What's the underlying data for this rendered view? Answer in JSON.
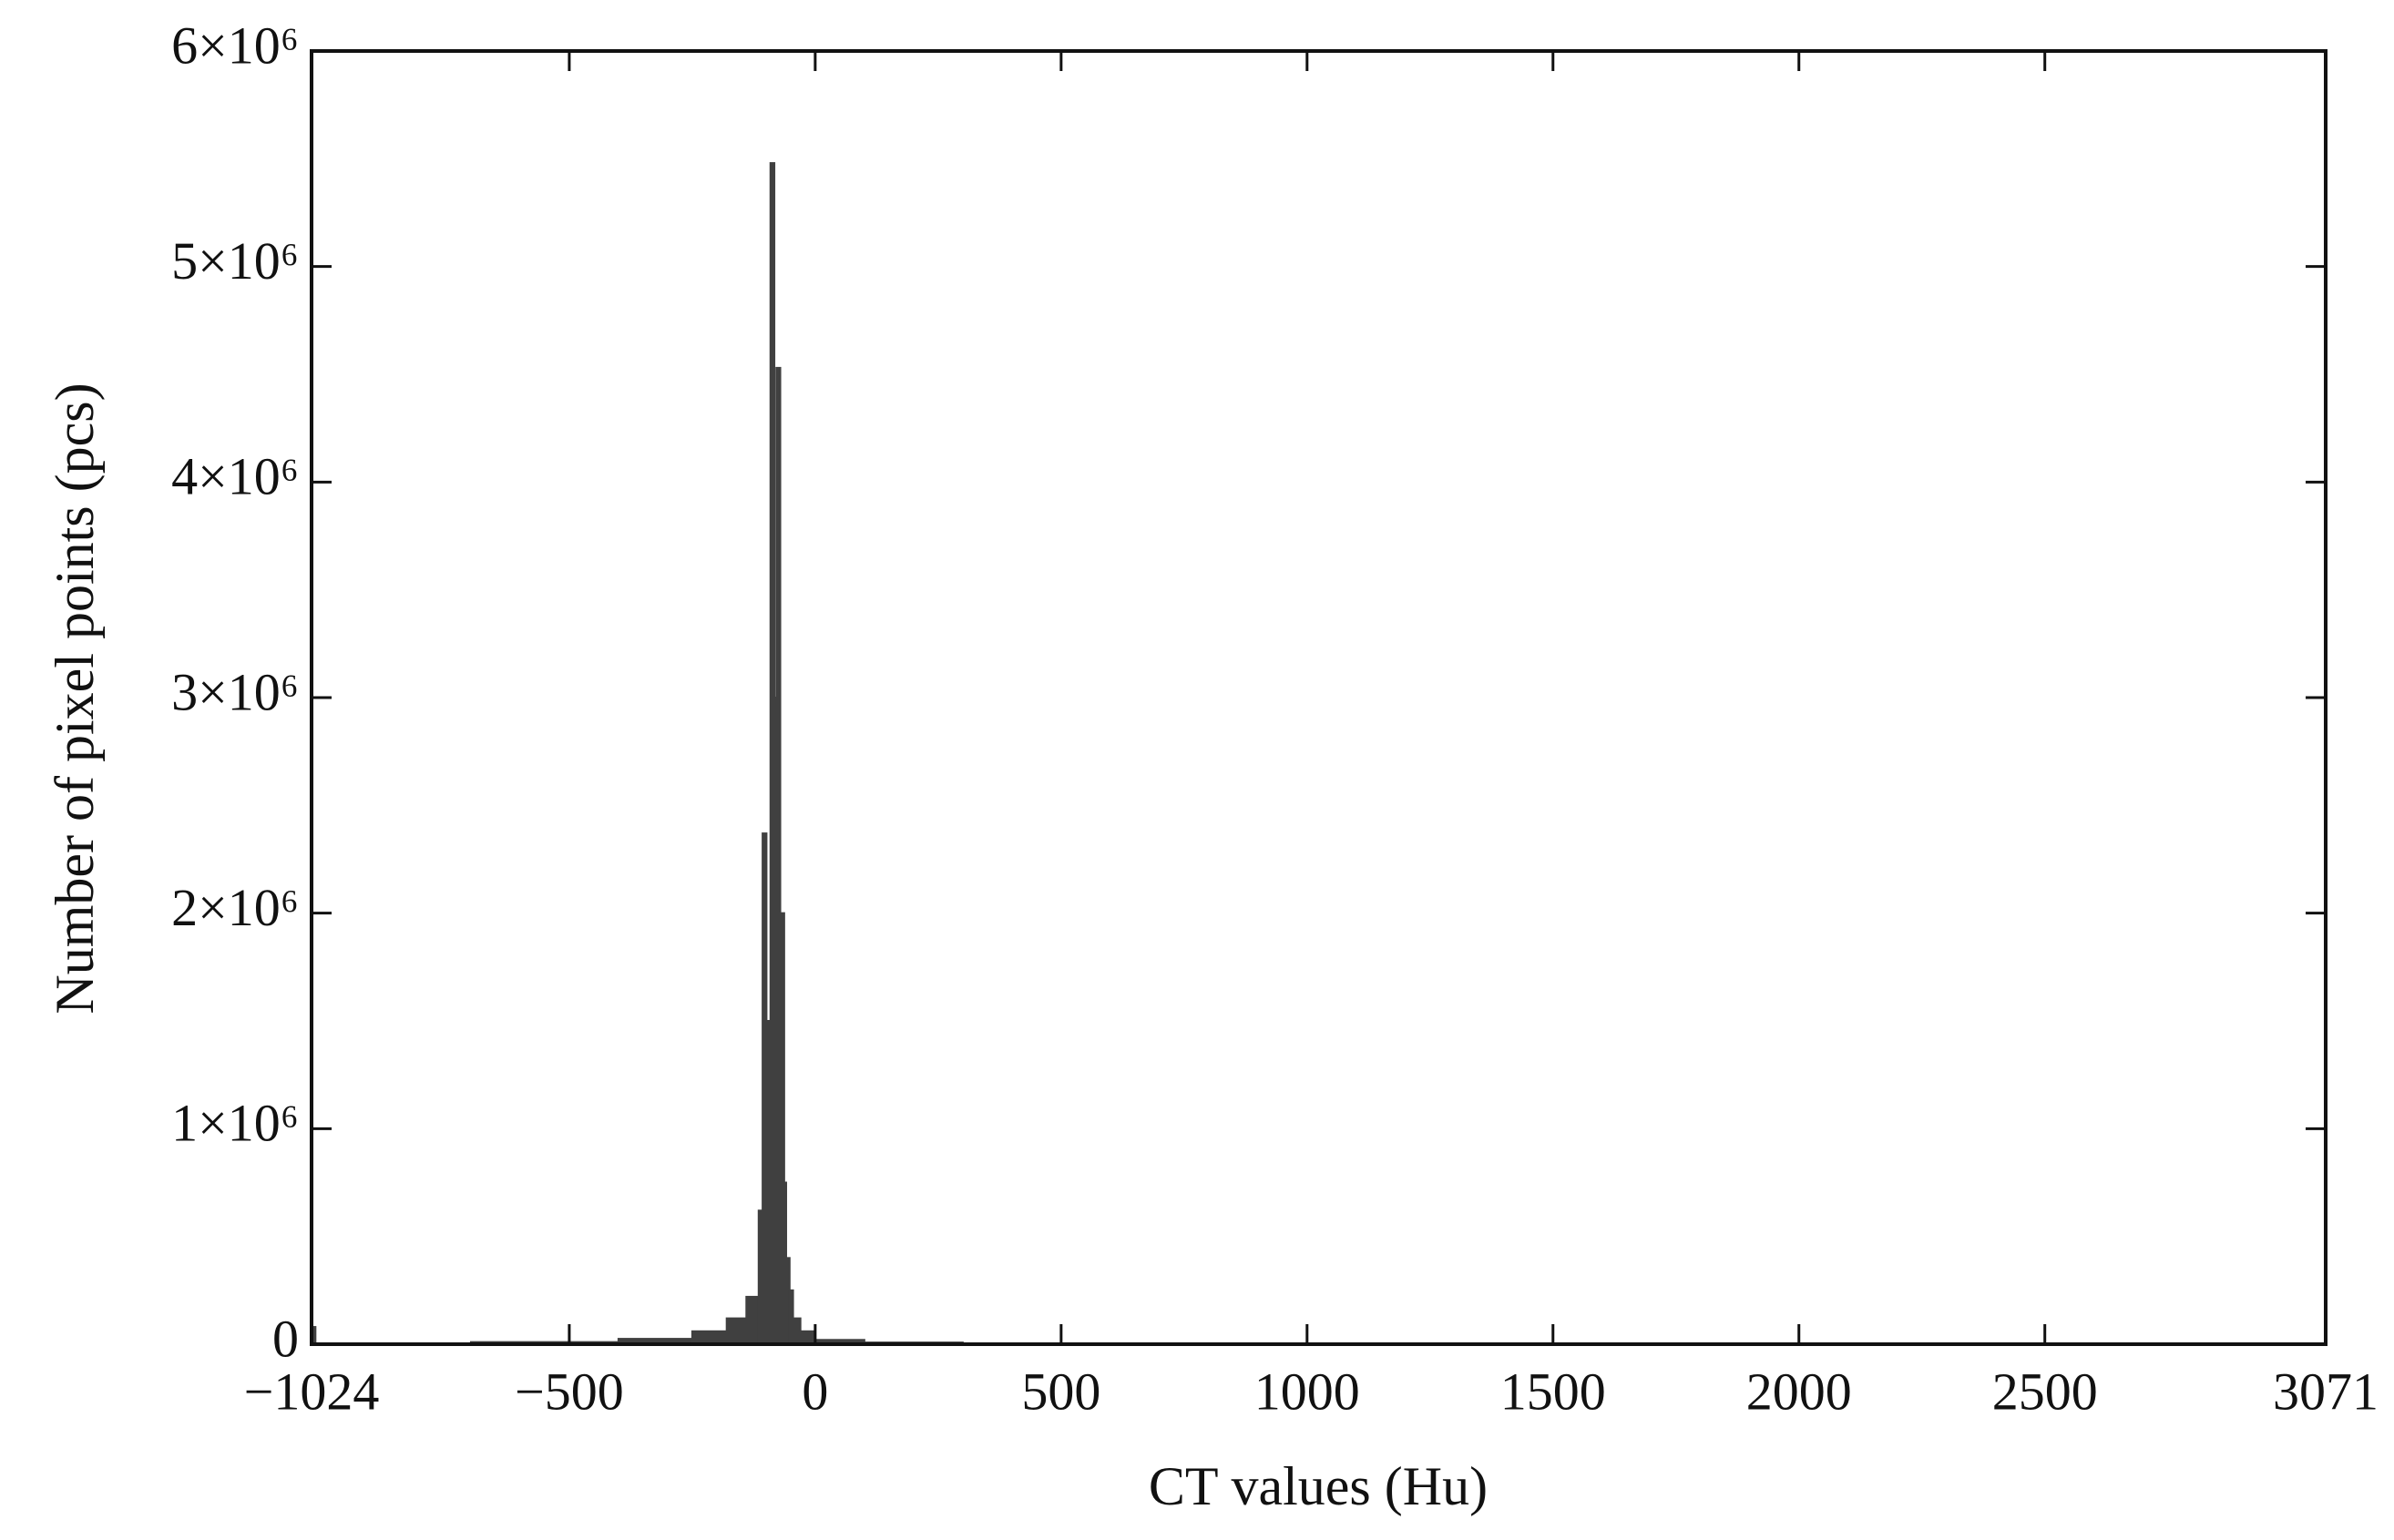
{
  "chart_data": {
    "type": "histogram",
    "x_label": "CT values (Hu)",
    "y_label": "Number of pixel points (pcs)",
    "color": "#404040",
    "bins": [
      -1024,
      -1016,
      -700,
      -400,
      -250,
      -180,
      -140,
      -115,
      -107,
      -99,
      -91,
      -83,
      -79,
      -71,
      -63,
      -59,
      -52,
      -45,
      -30,
      0,
      100,
      300,
      1300,
      3071
    ],
    "counts": [
      80000,
      3000,
      10000,
      25000,
      60000,
      120000,
      220000,
      620000,
      2370000,
      1500000,
      5480000,
      3000000,
      4530000,
      2000000,
      750000,
      400000,
      250000,
      120000,
      60000,
      20000,
      8000,
      3000,
      0
    ],
    "xlim": [
      -1024,
      3071
    ],
    "ylim": [
      0,
      6000000
    ],
    "xticks": [
      {
        "value": -1024,
        "label": "−1024"
      },
      {
        "value": -500,
        "label": "−500"
      },
      0,
      500,
      1000,
      1500,
      2000,
      2500,
      3071
    ],
    "yticks": [
      0,
      {
        "value": 1000000,
        "label": "1×10⁶"
      },
      {
        "value": 2000000,
        "label": "2×10⁶"
      },
      {
        "value": 3000000,
        "label": "3×10⁶"
      },
      {
        "value": 4000000,
        "label": "4×10⁶"
      },
      {
        "value": 5000000,
        "label": "5×10⁶"
      },
      {
        "value": 6000000,
        "label": "6×10⁶"
      }
    ],
    "grid": false
  }
}
